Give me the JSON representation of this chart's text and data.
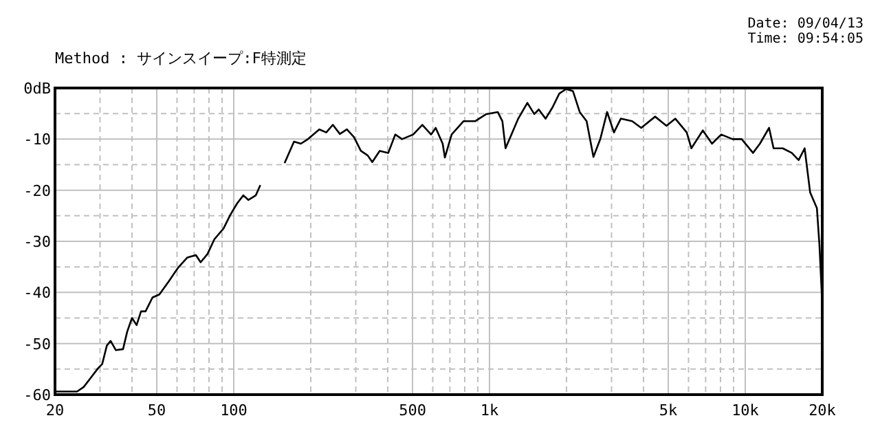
{
  "chart_data": {
    "type": "line",
    "title": "Method : サインスイープ:F特測定",
    "annotations": [
      "Date: 09/04/13",
      "Time: 09:54:05"
    ],
    "log": "x",
    "grid": true,
    "marker": "none",
    "line_style": "solid",
    "xlim": [
      20,
      20000
    ],
    "ylim": [
      -60,
      0
    ],
    "xticks": [
      20,
      {
        "value": 30,
        "label": null
      },
      {
        "value": 40,
        "label": null
      },
      50,
      {
        "value": 60,
        "label": null
      },
      {
        "value": 70,
        "label": null
      },
      {
        "value": 80,
        "label": null
      },
      {
        "value": 90,
        "label": null
      },
      100,
      {
        "value": 200,
        "label": null
      },
      {
        "value": 300,
        "label": null
      },
      {
        "value": 400,
        "label": null
      },
      500,
      {
        "value": 600,
        "label": null
      },
      {
        "value": 700,
        "label": null
      },
      {
        "value": 800,
        "label": null
      },
      {
        "value": 900,
        "label": null
      },
      {
        "value": 1000,
        "label": "1k"
      },
      {
        "value": 2000,
        "label": null
      },
      {
        "value": 3000,
        "label": null
      },
      {
        "value": 4000,
        "label": null
      },
      {
        "value": 5000,
        "label": "5k"
      },
      {
        "value": 6000,
        "label": null
      },
      {
        "value": 7000,
        "label": null
      },
      {
        "value": 8000,
        "label": null
      },
      {
        "value": 9000,
        "label": null
      },
      {
        "value": 10000,
        "label": "10k"
      },
      {
        "value": 20000,
        "label": "20k"
      }
    ],
    "yticks": [
      {
        "value": 0,
        "label": "0dB"
      },
      {
        "value": -5,
        "label": null
      },
      -10,
      {
        "value": -15,
        "label": null
      },
      -20,
      {
        "value": -25,
        "label": null
      },
      -30,
      {
        "value": -35,
        "label": null
      },
      -40,
      {
        "value": -45,
        "label": null
      },
      -50,
      {
        "value": -55,
        "label": null
      },
      -60
    ],
    "series": [
      {
        "color": "#000000",
        "x": [
          20,
          24.4,
          25.9,
          27.6,
          29.4,
          30.6,
          31.9,
          33.0,
          34.6,
          36.9,
          38.3,
          40.0,
          41.7,
          43.4,
          45.2,
          48.1,
          51.2,
          55.6,
          60.5,
          65.7,
          71.1,
          74.2,
          78.9,
          84.0,
          91.2,
          97.0,
          103,
          109,
          114,
          122,
          127,
          142,
          158,
          172,
          183,
          195,
          216,
          230,
          244,
          260,
          277,
          295,
          314,
          334,
          348,
          372,
          402,
          428,
          455,
          503,
          546,
          591,
          616,
          656,
          669,
          711,
          791,
          878,
          972,
          1077,
          1123,
          1155,
          1218,
          1295,
          1406,
          1496,
          1558,
          1657,
          1763,
          1874,
          1993,
          2119,
          2253,
          2397,
          2549,
          2711,
          2883,
          3066,
          3261,
          3613,
          3919,
          4441,
          4920,
          5329,
          5904,
          6154,
          6826,
          7413,
          8053,
          8919,
          9684,
          10724,
          11408,
          12390,
          12904,
          14015,
          15200,
          16170,
          17070,
          17930,
          19060,
          19500,
          19900,
          20000
        ],
        "values": [
          -59.4,
          -59.4,
          -58.5,
          -56.7,
          -54.9,
          -54,
          -50.4,
          -49.5,
          -51.3,
          -51.1,
          -47.7,
          -45,
          -46.4,
          -43.7,
          -43.7,
          -41,
          -40.4,
          -37.9,
          -35.2,
          -33.2,
          -32.7,
          -34.1,
          -32.5,
          -29.6,
          -27.5,
          -24.8,
          -22.6,
          -21,
          -21.9,
          -21,
          -19,
          null,
          -14.7,
          -10.5,
          -10.9,
          -10,
          -8.1,
          -8.7,
          -7.2,
          -9,
          -8.1,
          -9.6,
          -12.3,
          -13.2,
          -14.5,
          -12.3,
          -12.7,
          -9.1,
          -10,
          -9.1,
          -7.2,
          -9.1,
          -7.8,
          -10.9,
          -13.6,
          -9.1,
          -6.5,
          -6.5,
          -5.1,
          -4.7,
          -6.5,
          -11.8,
          -9.1,
          -6,
          -2.9,
          -5.1,
          -4.2,
          -6,
          -3.8,
          -1.1,
          -0.2,
          -0.6,
          -4.7,
          -6.5,
          -13.5,
          -10,
          -4.7,
          -8.7,
          -6,
          -6.5,
          -7.8,
          -5.6,
          -7.4,
          -6,
          -8.7,
          -11.8,
          -8.3,
          -10.9,
          -9.1,
          -10,
          -10,
          -12.7,
          -10.9,
          -7.8,
          -11.8,
          -11.8,
          -12.7,
          -14.1,
          -11.8,
          -20.4,
          -23.5,
          -30.7,
          -40,
          -47.3
        ]
      }
    ]
  }
}
